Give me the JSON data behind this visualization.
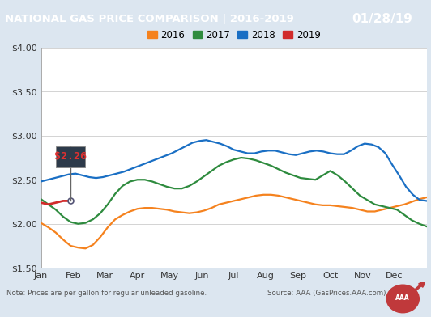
{
  "title": "NATIONAL GAS PRICE COMPARISON | 2016-2019",
  "date_label": "01/28/19",
  "title_bg": "#1a4f8a",
  "date_bg": "#c0393b",
  "note": "Note: Prices are per gallon for regular unleaded gasoline.",
  "source": "Source: AAA (GasPrices.AAA.com)",
  "bg_color": "#dce6f0",
  "plot_bg": "#ffffff",
  "ylim": [
    1.5,
    4.0
  ],
  "yticks": [
    1.5,
    2.0,
    2.5,
    3.0,
    3.5,
    4.0
  ],
  "months": [
    "Jan",
    "Feb",
    "Mar",
    "Apr",
    "May",
    "Jun",
    "Jul",
    "Aug",
    "Sep",
    "Oct",
    "Nov",
    "Dec"
  ],
  "legend_years": [
    "2016",
    "2017",
    "2018",
    "2019"
  ],
  "legend_colors": [
    "#f5821e",
    "#2e8b3e",
    "#1a6fc4",
    "#d12b2b"
  ],
  "annotation_text": "$2.26",
  "series_2016": [
    2.01,
    1.96,
    1.9,
    1.82,
    1.75,
    1.73,
    1.72,
    1.76,
    1.85,
    1.96,
    2.05,
    2.1,
    2.14,
    2.17,
    2.18,
    2.18,
    2.17,
    2.16,
    2.14,
    2.13,
    2.12,
    2.13,
    2.15,
    2.18,
    2.22,
    2.24,
    2.26,
    2.28,
    2.3,
    2.32,
    2.33,
    2.33,
    2.32,
    2.3,
    2.28,
    2.26,
    2.24,
    2.22,
    2.21,
    2.21,
    2.2,
    2.19,
    2.18,
    2.16,
    2.14,
    2.14,
    2.16,
    2.18,
    2.2,
    2.22,
    2.25,
    2.28,
    2.3
  ],
  "series_2017": [
    2.28,
    2.22,
    2.16,
    2.08,
    2.02,
    2.0,
    2.01,
    2.05,
    2.12,
    2.22,
    2.34,
    2.43,
    2.48,
    2.5,
    2.5,
    2.48,
    2.45,
    2.42,
    2.4,
    2.4,
    2.43,
    2.48,
    2.54,
    2.6,
    2.66,
    2.7,
    2.73,
    2.75,
    2.74,
    2.72,
    2.69,
    2.66,
    2.62,
    2.58,
    2.55,
    2.52,
    2.51,
    2.5,
    2.55,
    2.6,
    2.55,
    2.48,
    2.4,
    2.32,
    2.27,
    2.22,
    2.2,
    2.18,
    2.16,
    2.1,
    2.04,
    2.0,
    1.97
  ],
  "series_2018": [
    2.48,
    2.5,
    2.52,
    2.54,
    2.56,
    2.57,
    2.55,
    2.53,
    2.52,
    2.53,
    2.55,
    2.57,
    2.59,
    2.62,
    2.65,
    2.68,
    2.71,
    2.74,
    2.77,
    2.8,
    2.84,
    2.88,
    2.92,
    2.94,
    2.95,
    2.93,
    2.91,
    2.88,
    2.84,
    2.82,
    2.8,
    2.8,
    2.82,
    2.83,
    2.83,
    2.81,
    2.79,
    2.78,
    2.8,
    2.82,
    2.83,
    2.82,
    2.8,
    2.79,
    2.79,
    2.83,
    2.88,
    2.91,
    2.9,
    2.87,
    2.8,
    2.67,
    2.55,
    2.42,
    2.33,
    2.27,
    2.26
  ],
  "series_2019": [
    2.24,
    2.23,
    2.22,
    2.23,
    2.24,
    2.25,
    2.26,
    2.26,
    2.26
  ],
  "color_2016": "#f5821e",
  "color_2017": "#2e8b3e",
  "color_2018": "#1a6fc4",
  "color_2019": "#d12b2b"
}
